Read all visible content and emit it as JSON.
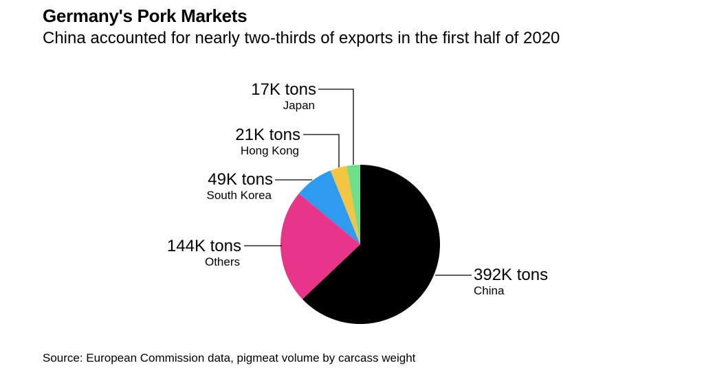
{
  "title": "Germany's Pork Markets",
  "subtitle": "China accounted for nearly two-thirds of exports in the first half of 2020",
  "source": "Source: European Commission data, pigmeat volume by carcass weight",
  "chart_data": {
    "type": "pie",
    "categories": [
      "China",
      "Others",
      "South Korea",
      "Hong Kong",
      "Japan"
    ],
    "values": [
      392,
      144,
      49,
      21,
      17
    ],
    "value_labels": [
      "392K tons",
      "144K tons",
      "49K tons",
      "21K tons",
      "17K tons"
    ],
    "units": "thousand tons",
    "colors": [
      "#000000",
      "#e8358a",
      "#2f9bf0",
      "#f5c542",
      "#6fe08a"
    ],
    "start_angle": "12 o'clock",
    "direction": "clockwise",
    "legend": "none"
  }
}
